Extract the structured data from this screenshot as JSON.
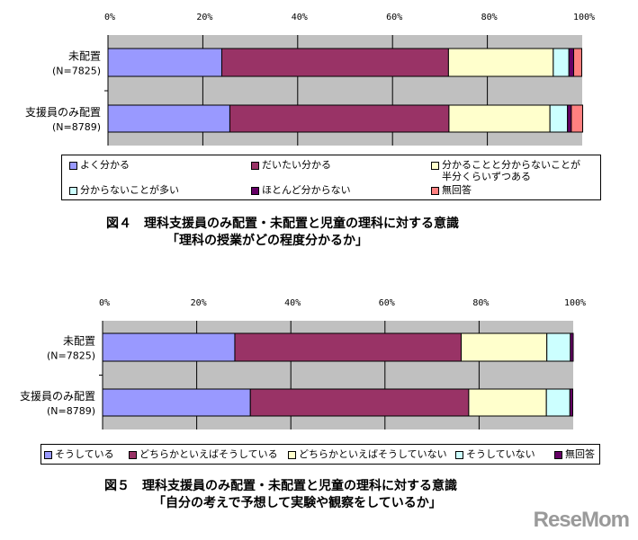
{
  "chart_data": [
    {
      "type": "bar",
      "orientation": "horizontal",
      "stacked": "percent",
      "categories": [
        "未配置\n(N=7825)",
        "支援員のみ配置\n(N=8789)"
      ],
      "xlim": [
        0,
        100
      ],
      "xticks": [
        "0%",
        "20%",
        "40%",
        "60%",
        "80%",
        "100%"
      ],
      "grid": true,
      "legend_position": "bottom",
      "series": [
        {
          "name": "よく分かる",
          "color": "#9999ff",
          "values": [
            24.0,
            25.7
          ]
        },
        {
          "name": "だいたい分かる",
          "color": "#993366",
          "values": [
            47.8,
            46.2
          ]
        },
        {
          "name": "分かることと分からないことが半分くらいずつある",
          "color": "#ffffcc",
          "values": [
            22.1,
            21.3
          ]
        },
        {
          "name": "分からないことが多い",
          "color": "#ccffff",
          "values": [
            3.3,
            3.7
          ]
        },
        {
          "name": "ほとんど分からない",
          "color": "#660066",
          "values": [
            1.0,
            0.8
          ]
        },
        {
          "name": "無回答",
          "color": "#ff8080",
          "values": [
            1.7,
            2.4
          ]
        }
      ],
      "legend_labels": [
        [
          "よく分かる"
        ],
        [
          "だいたい分かる"
        ],
        [
          "分かることと分からないことが",
          "半分くらいずつある"
        ],
        [
          "分からないことが多い"
        ],
        [
          "ほとんど分からない"
        ],
        [
          "無回答"
        ]
      ],
      "caption": [
        "図４　理科支援員のみ配置・未配置と児童の理科に対する意識",
        "「理科の授業がどの程度分かるか」"
      ]
    },
    {
      "type": "bar",
      "orientation": "horizontal",
      "stacked": "percent",
      "categories": [
        "未配置\n(N=7825)",
        "支援員のみ配置\n(N=8789)"
      ],
      "xlim": [
        0,
        100
      ],
      "xticks": [
        "0%",
        "20%",
        "40%",
        "60%",
        "80%",
        "100%"
      ],
      "grid": true,
      "legend_position": "bottom",
      "series": [
        {
          "name": "そうしている",
          "color": "#9999ff",
          "values": [
            28.1,
            31.4
          ]
        },
        {
          "name": "どちらかといえばそうしている",
          "color": "#993366",
          "values": [
            48.1,
            46.4
          ]
        },
        {
          "name": "どちらかといえばそうしていない",
          "color": "#ffffcc",
          "values": [
            18.2,
            16.5
          ]
        },
        {
          "name": "そうしていない",
          "color": "#ccffff",
          "values": [
            5.0,
            5.0
          ]
        },
        {
          "name": "無回答",
          "color": "#660066",
          "values": [
            0.6,
            0.6
          ]
        }
      ],
      "legend_labels": [
        [
          "そうしている"
        ],
        [
          "どちらかといえばそうしている"
        ],
        [
          "どちらかといえばそうしていない"
        ],
        [
          "そうしていない"
        ],
        [
          "無回答"
        ]
      ],
      "caption": [
        "図５　理科支援員のみ配置・未配置と児童の理科に対する意識",
        "「自分の考えで予想して実験や観察をしているか」"
      ]
    }
  ],
  "watermark": "ReseMom",
  "colors": {
    "plot_background": "#c0c0c0"
  }
}
